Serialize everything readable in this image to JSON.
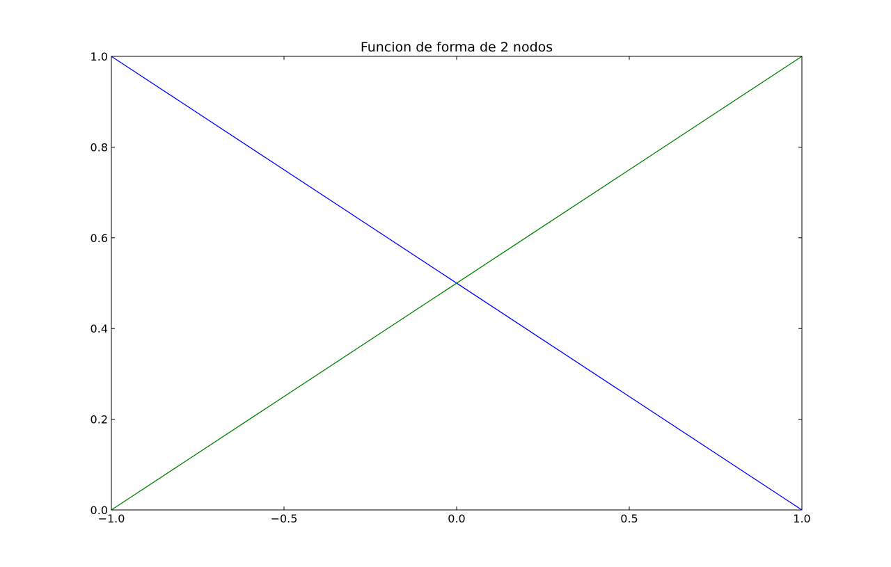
{
  "chart_data": {
    "type": "line",
    "title": "Funcion de forma de 2 nodos",
    "xlabel": "",
    "ylabel": "",
    "xlim": [
      -1.0,
      1.0
    ],
    "ylim": [
      0.0,
      1.0
    ],
    "x_ticks": [
      -1.0,
      -0.5,
      0.0,
      0.5,
      1.0
    ],
    "x_tick_labels": [
      "−1.0",
      "−0.5",
      "0.0",
      "0.5",
      "1.0"
    ],
    "y_ticks": [
      0.0,
      0.2,
      0.4,
      0.6,
      0.8,
      1.0
    ],
    "y_tick_labels": [
      "0.0",
      "0.2",
      "0.4",
      "0.6",
      "0.8",
      "1.0"
    ],
    "grid": false,
    "legend": "none",
    "series": [
      {
        "color": "#0000ff",
        "x": [
          -1.0,
          1.0
        ],
        "y": [
          1.0,
          0.0
        ]
      },
      {
        "color": "#008000",
        "x": [
          -1.0,
          1.0
        ],
        "y": [
          0.0,
          1.0
        ]
      }
    ]
  }
}
